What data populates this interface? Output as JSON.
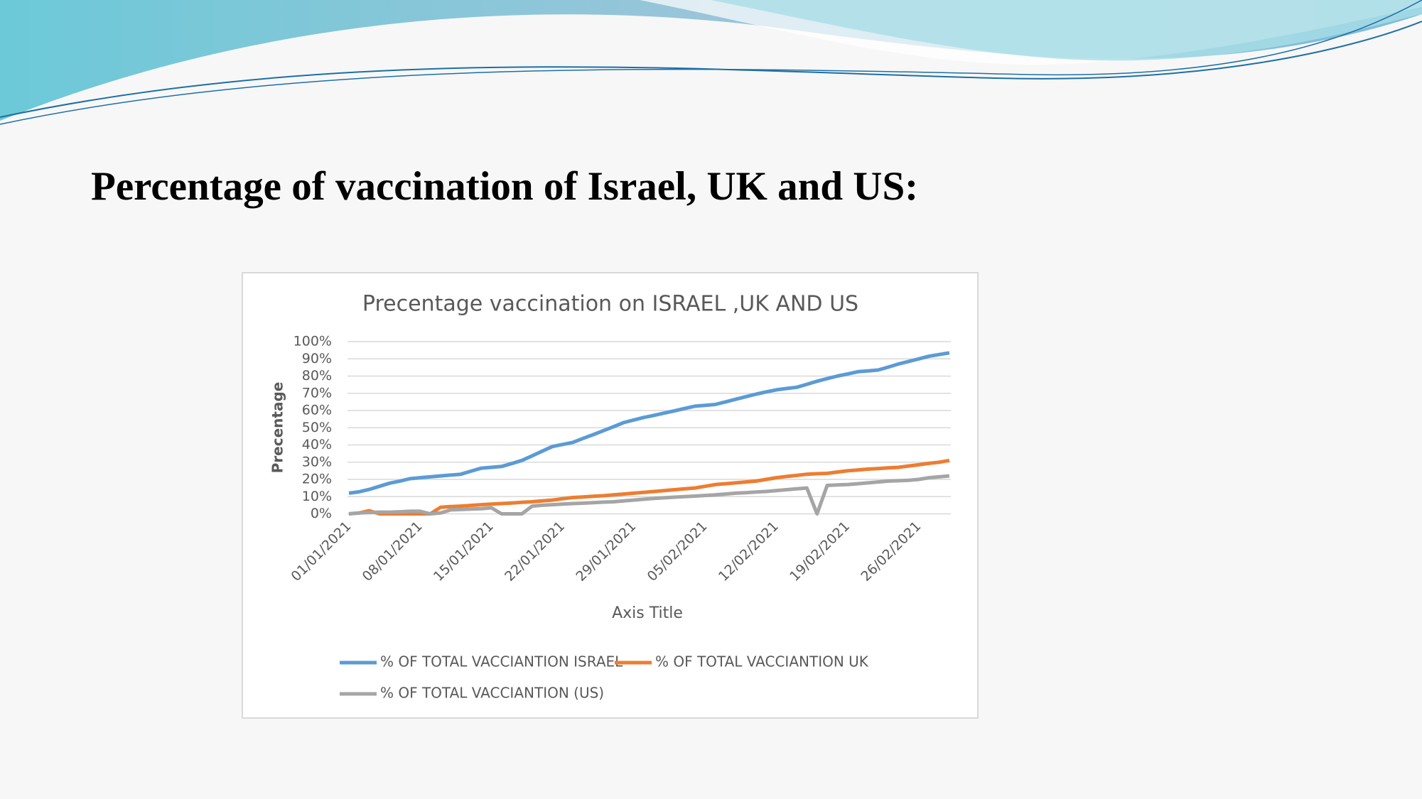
{
  "slide_title": "Percentage of vaccination of Israel, UK and US:",
  "chart_data": {
    "type": "line",
    "title": "Precentage vaccination on ISRAEL ,UK AND US",
    "x_label": "Axis Title",
    "y_label": "Precentage",
    "categories": [
      "01/01/2021",
      null,
      null,
      null,
      null,
      null,
      null,
      "08/01/2021",
      null,
      null,
      null,
      null,
      null,
      null,
      "15/01/2021",
      null,
      null,
      null,
      null,
      null,
      null,
      "22/01/2021",
      null,
      null,
      null,
      null,
      null,
      null,
      "29/01/2021",
      null,
      null,
      null,
      null,
      null,
      null,
      "05/02/2021",
      null,
      null,
      null,
      null,
      null,
      null,
      "12/02/2021",
      null,
      null,
      null,
      null,
      null,
      null,
      "19/02/2021",
      null,
      null,
      null,
      null,
      null,
      null,
      "26/02/2021",
      null,
      null,
      null
    ],
    "ylim": [
      0,
      100
    ],
    "yticks": [
      {
        "value": 0,
        "label": "0%"
      },
      {
        "value": 10,
        "label": "10%"
      },
      {
        "value": 20,
        "label": "20%"
      },
      {
        "value": 30,
        "label": "30%"
      },
      {
        "value": 40,
        "label": "40%"
      },
      {
        "value": 50,
        "label": "50%"
      },
      {
        "value": 60,
        "label": "60%"
      },
      {
        "value": 70,
        "label": "70%"
      },
      {
        "value": 80,
        "label": "80%"
      },
      {
        "value": 90,
        "label": "90%"
      },
      {
        "value": 100,
        "label": "100%"
      }
    ],
    "grid": true,
    "legend": "bottom",
    "series": [
      {
        "name": "% OF TOTAL VACCIANTION ISRAEL",
        "color": "#5b9bd5",
        "values": [
          12,
          12.8,
          14.2,
          16,
          17.8,
          19,
          20.4,
          21,
          21.5,
          22,
          22.5,
          23,
          24.8,
          26.5,
          27,
          27.5,
          29.2,
          31,
          33.7,
          36.4,
          39.1,
          40.3,
          41.5,
          43.8,
          46,
          48.3,
          50.6,
          53,
          54.5,
          56,
          57.2,
          58.5,
          59.8,
          61.2,
          62.5,
          63,
          63.5,
          65,
          66.5,
          68,
          69.5,
          70.8,
          72,
          72.8,
          73.5,
          75.2,
          77,
          78.5,
          80,
          81.2,
          82.5,
          83,
          83.5,
          85.2,
          87,
          88.5,
          90,
          91.5,
          92.5,
          93.5
        ]
      },
      {
        "name": "% OF TOTAL VACCIANTION UK",
        "color": "#ed7d31",
        "values": [
          0,
          0.5,
          1.8,
          0,
          0,
          0,
          0,
          0,
          0,
          3.8,
          4.2,
          4.5,
          4.9,
          5.3,
          5.7,
          6,
          6.3,
          6.7,
          7,
          7.5,
          8,
          8.8,
          9.5,
          9.8,
          10.2,
          10.5,
          11,
          11.5,
          12,
          12.5,
          13,
          13.5,
          14,
          14.5,
          15,
          16,
          17,
          17.5,
          18,
          18.5,
          19,
          20,
          21,
          21.7,
          22.3,
          23,
          23.3,
          23.5,
          24.3,
          25,
          25.5,
          26,
          26.3,
          26.7,
          27,
          27.8,
          28.5,
          29.3,
          30,
          31
        ]
      },
      {
        "name": "% OF TOTAL VACCIANTION (US)",
        "color": "#a5a5a5",
        "values": [
          0,
          0.5,
          0.8,
          1,
          1,
          1.2,
          1.5,
          1.5,
          0,
          0.5,
          2.3,
          2.5,
          2.8,
          3,
          3.5,
          0,
          0,
          0,
          4.5,
          5,
          5.3,
          5.7,
          6,
          6.2,
          6.5,
          6.8,
          7,
          7.5,
          8,
          8.5,
          9,
          9.3,
          9.7,
          10,
          10.3,
          10.7,
          11,
          11.5,
          12,
          12.3,
          12.7,
          13,
          13.5,
          14,
          14.5,
          15,
          0,
          16.5,
          16.8,
          17,
          17.5,
          18,
          18.5,
          19,
          19.2,
          19.5,
          20,
          21,
          21.5,
          22
        ]
      }
    ]
  }
}
